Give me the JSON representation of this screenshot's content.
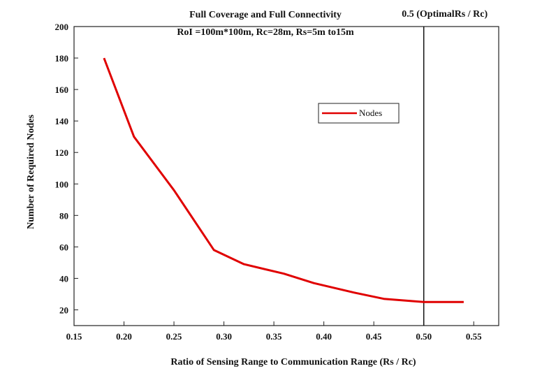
{
  "chart_data": {
    "type": "line",
    "title": "Full Coverage and Full Connectivity",
    "subtitle": "RoI =100m*100m, Rc=28m, Rs=5m to15m",
    "xlabel": "Ratio of Sensing Range to Communication Range (Rs / Rc)",
    "ylabel": "Number of Required Nodes",
    "xlim": [
      0.15,
      0.575
    ],
    "ylim": [
      10,
      200
    ],
    "xticks": [
      "0.15",
      "0.20",
      "0.25",
      "0.30",
      "0.35",
      "0.40",
      "0.45",
      "0.50",
      "0.55"
    ],
    "yticks": [
      "20",
      "40",
      "60",
      "80",
      "100",
      "120",
      "140",
      "160",
      "180",
      "200"
    ],
    "grid": false,
    "legend_position": "upper-right",
    "series": [
      {
        "name": "Nodes",
        "color": "#e00000",
        "x": [
          0.18,
          0.21,
          0.25,
          0.29,
          0.32,
          0.36,
          0.39,
          0.43,
          0.46,
          0.5,
          0.54
        ],
        "y": [
          180,
          130,
          96,
          58,
          49,
          43,
          37,
          31,
          27,
          25,
          25
        ]
      }
    ],
    "annotations": [
      {
        "type": "vline",
        "x": 0.5,
        "label": "0.5 (OptimalRs / Rc)",
        "color": "#111111"
      }
    ]
  }
}
